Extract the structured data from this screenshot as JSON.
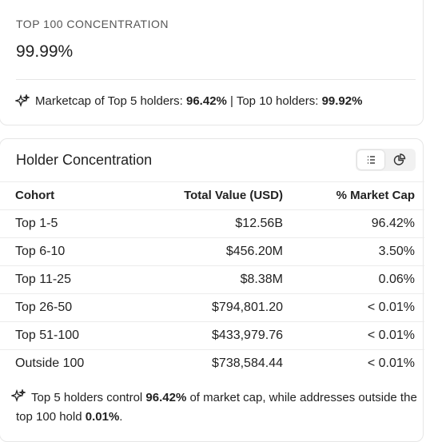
{
  "summary": {
    "label": "TOP 100 CONCENTRATION",
    "value": "99.99%",
    "note": [
      "Marketcap of Top 5 holders: ",
      "96.42%",
      " | Top 10 holders: ",
      "99.92%"
    ]
  },
  "table": {
    "title": "Holder Concentration",
    "columns": [
      "Cohort",
      "Total Value (USD)",
      "% Market Cap"
    ],
    "rows": [
      [
        "Top 1-5",
        "$12.56B",
        "96.42%"
      ],
      [
        "Top 6-10",
        "$456.20M",
        "3.50%"
      ],
      [
        "Top 11-25",
        "$8.38M",
        "0.06%"
      ],
      [
        "Top 26-50",
        "$794,801.20",
        "< 0.01%"
      ],
      [
        "Top 51-100",
        "$433,979.76",
        "< 0.01%"
      ],
      [
        "Outside 100",
        "$738,584.44",
        "< 0.01%"
      ]
    ]
  },
  "footnote": [
    "Top 5 holders control ",
    "96.42%",
    " of market cap, while addresses outside the top 100 hold ",
    "0.01%",
    "."
  ]
}
